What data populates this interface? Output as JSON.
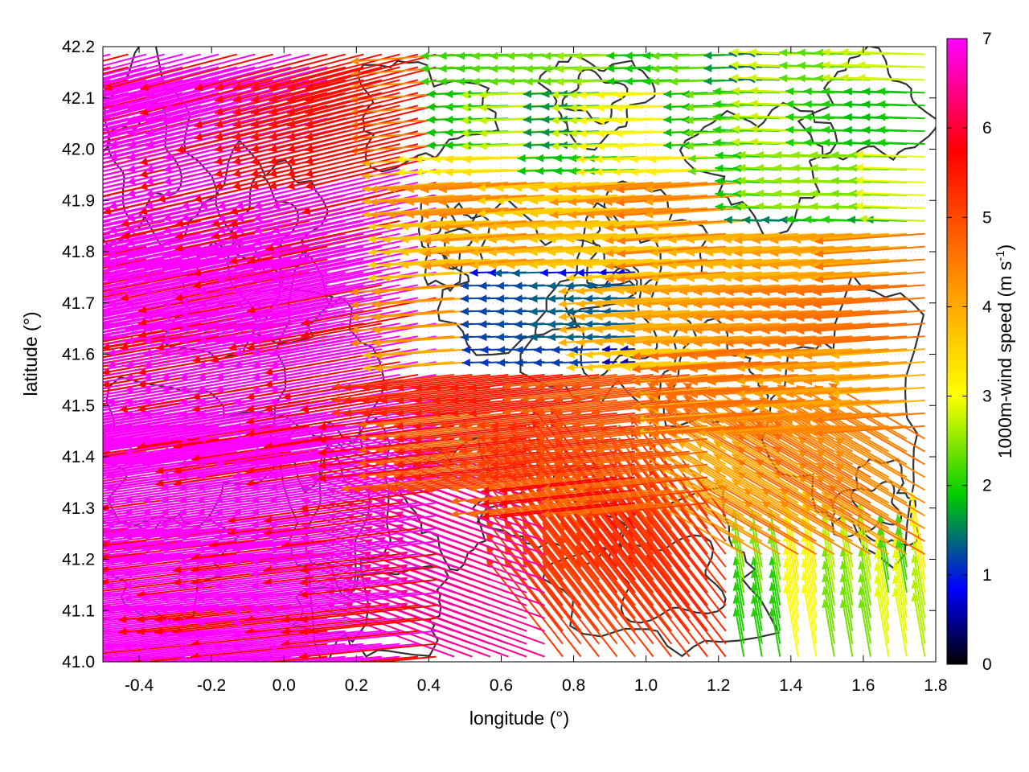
{
  "chart_data": {
    "type": "vector-field",
    "xlabel": "longitude (°)",
    "ylabel": "latitude (°)",
    "xlim": [
      -0.5,
      1.8
    ],
    "ylim": [
      41.0,
      42.2
    ],
    "xticks": [
      "-0.4",
      "-0.2",
      "0.0",
      "0.2",
      "0.4",
      "0.6",
      "0.8",
      "1.0",
      "1.2",
      "1.4",
      "1.6",
      "1.8"
    ],
    "yticks": [
      "41.0",
      "41.1",
      "41.2",
      "41.3",
      "41.4",
      "41.5",
      "41.6",
      "41.7",
      "41.8",
      "41.9",
      "42.0",
      "42.1",
      "42.2"
    ],
    "colorbar": {
      "label": "1000m-wind speed (m s",
      "label_sup": "-1",
      "label_end": ")",
      "range": [
        0,
        7
      ],
      "ticks": [
        "0",
        "1",
        "2",
        "3",
        "4",
        "5",
        "6",
        "7"
      ],
      "palette": [
        "#000000",
        "#0000ff",
        "#00b000",
        "#ffff00",
        "#ff9900",
        "#ff0000",
        "#ff00ff"
      ]
    },
    "vector_regions": [
      {
        "region": "west, lat 41.0-42.2, lon -0.5-0.4",
        "direction": "westward",
        "speed_ms": 7
      },
      {
        "region": "north-center, lon 0.6-1.2, lat 41.6-41.75",
        "direction": "westward",
        "speed_ms": 1
      },
      {
        "region": "northeast, lon 1.3-1.8, lat 41.9-42.2",
        "direction": "westward",
        "speed_ms": 2
      },
      {
        "region": "east, lon 1.2-1.8, lat 41.3-41.8",
        "direction": "westward",
        "speed_ms": 4.5
      },
      {
        "region": "southeast, lon 1.3-1.8, lat 41.0-41.2",
        "direction": "northward",
        "speed_ms": 2.5
      },
      {
        "region": "south-center, lon 0.8-1.2, lat 41.0-41.3",
        "direction": "northwestward",
        "speed_ms": 5.5
      }
    ],
    "contours": "terrain elevation isolines (dark gray)",
    "grid": "dotted"
  }
}
